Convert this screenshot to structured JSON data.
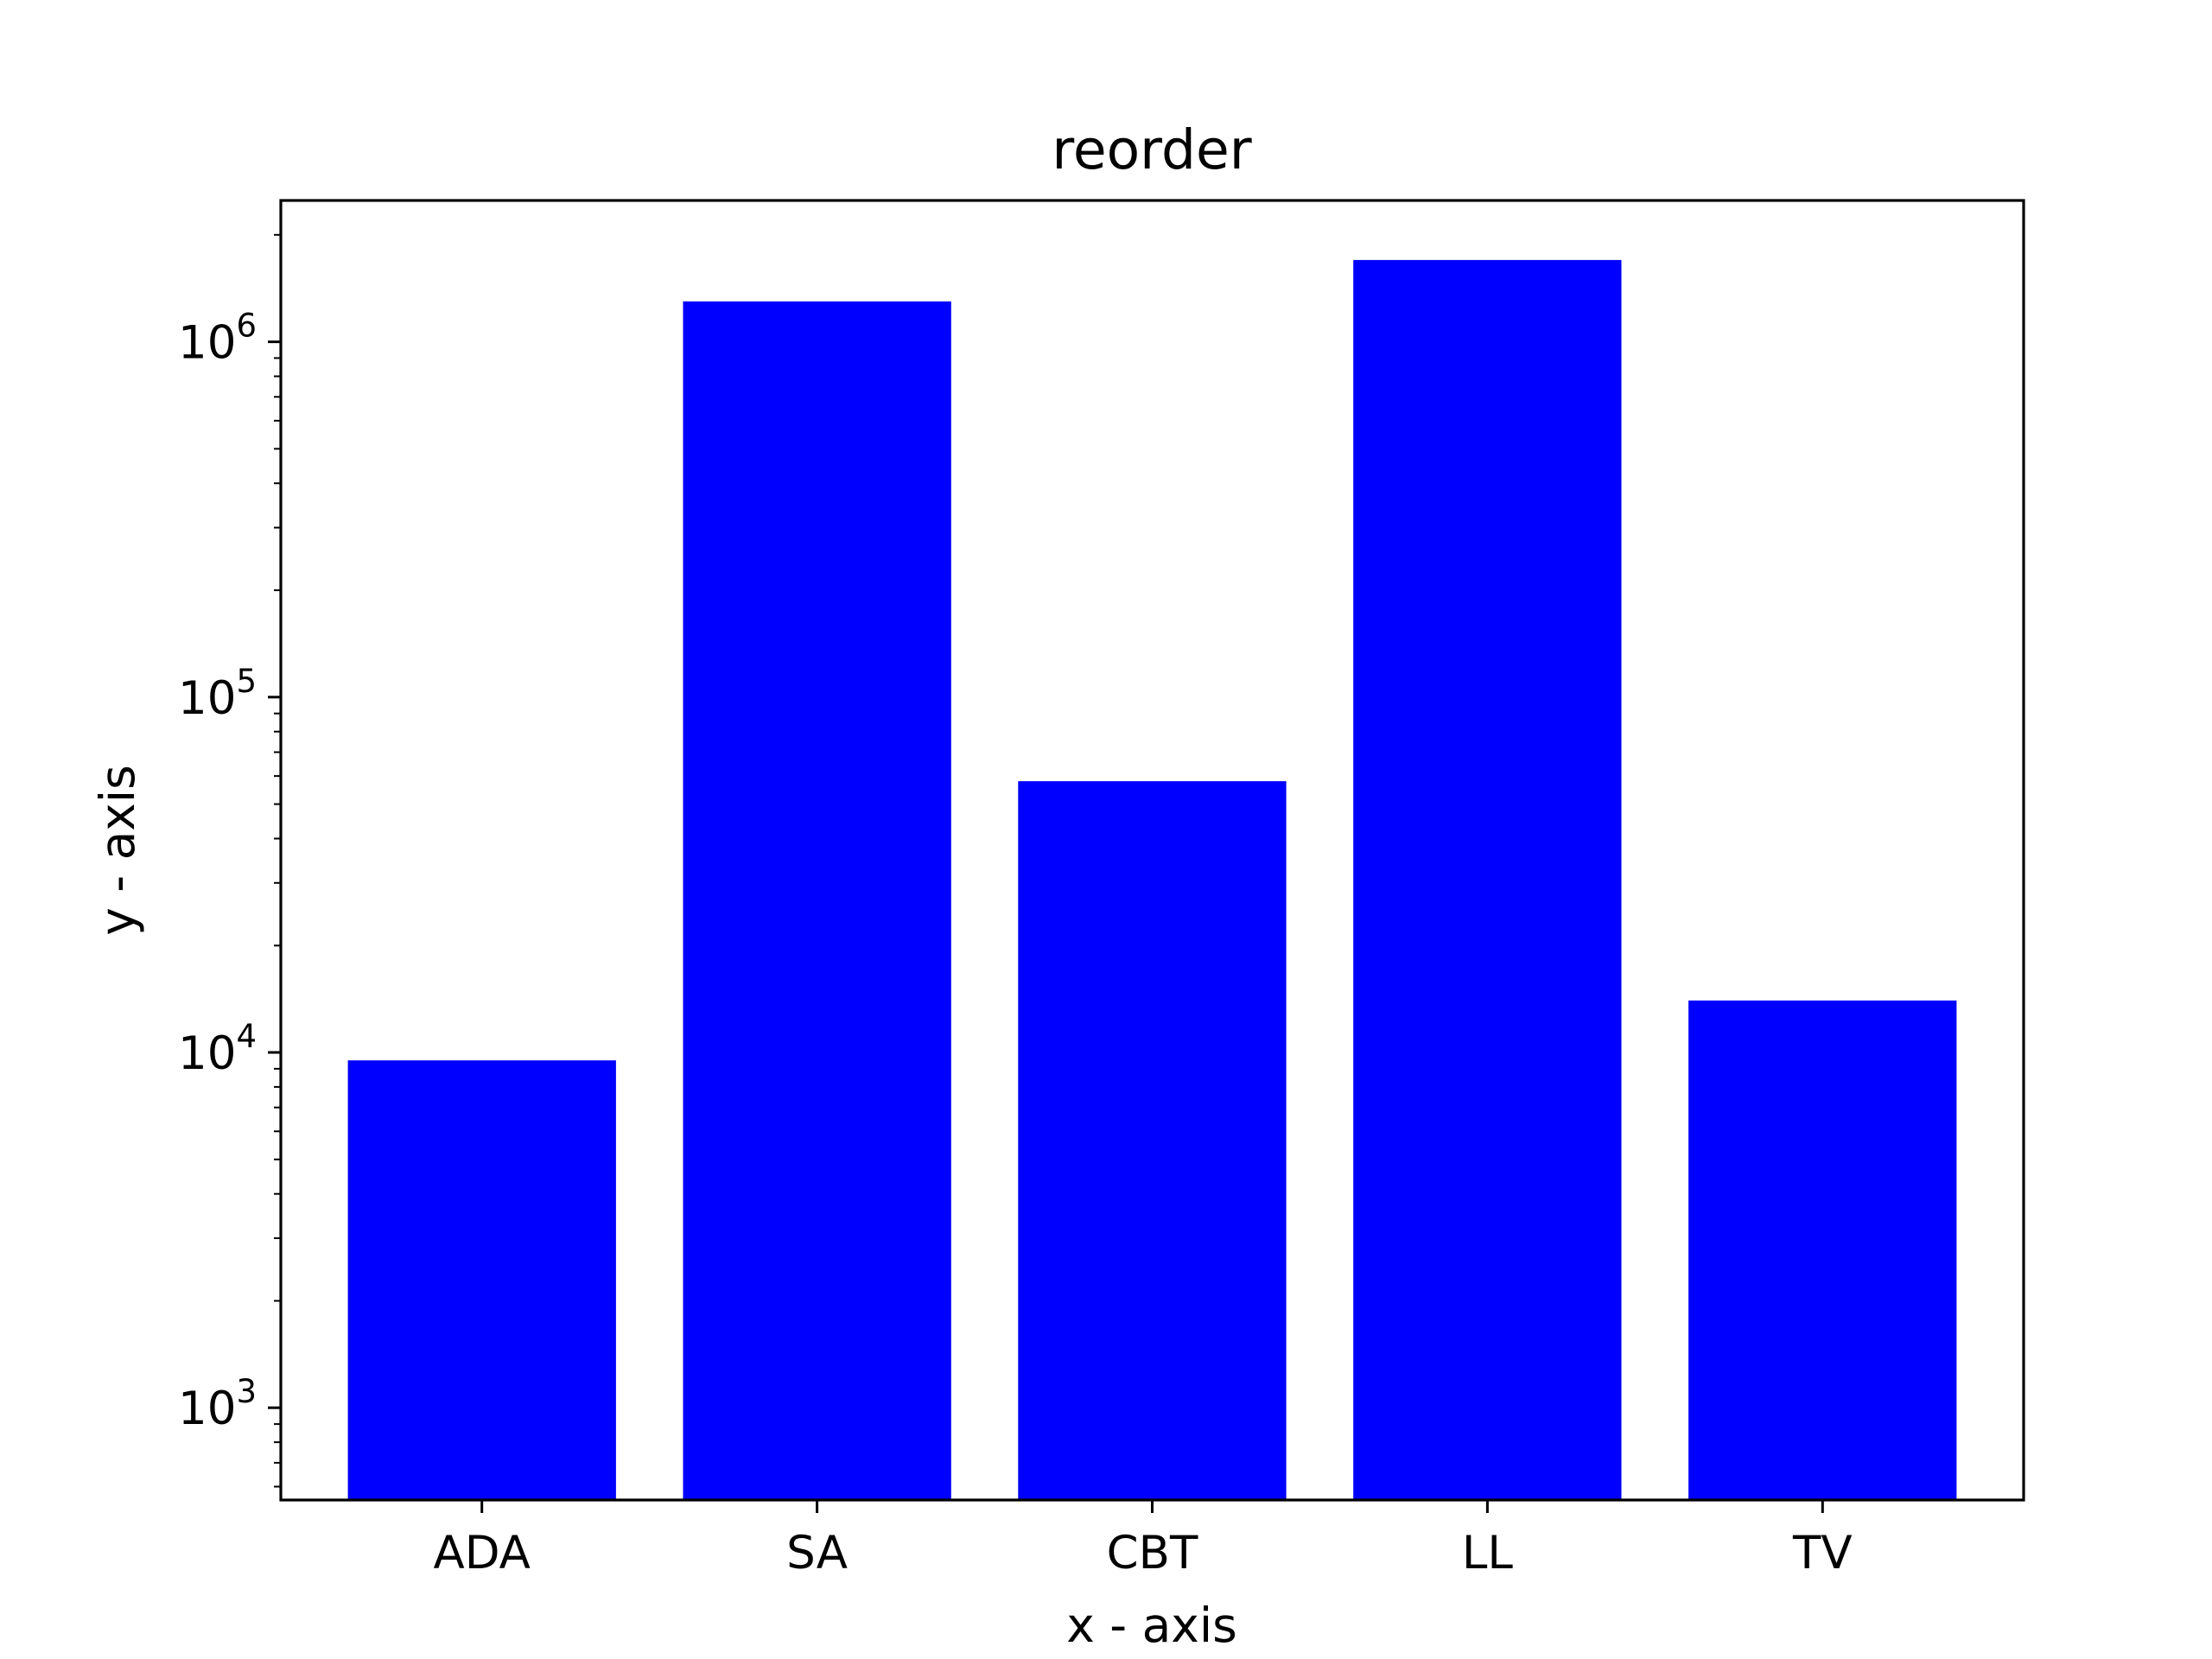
{
  "chart_data": {
    "type": "bar",
    "title": "reorder",
    "xlabel": "x - axis",
    "ylabel": "y - axis",
    "categories": [
      "ADA",
      "SA",
      "CBT",
      "LL",
      "TV"
    ],
    "values": [
      9500,
      1300000,
      58000,
      1700000,
      14000
    ],
    "yscale": "log",
    "ylim": [
      550,
      2500000
    ],
    "yticks": [
      {
        "value": 1000,
        "base": "10",
        "exp": "3"
      },
      {
        "value": 10000,
        "base": "10",
        "exp": "4"
      },
      {
        "value": 100000,
        "base": "10",
        "exp": "5"
      },
      {
        "value": 1000000,
        "base": "10",
        "exp": "6"
      }
    ],
    "bar_color": "#0000ff",
    "grid": false,
    "legend": "none"
  }
}
